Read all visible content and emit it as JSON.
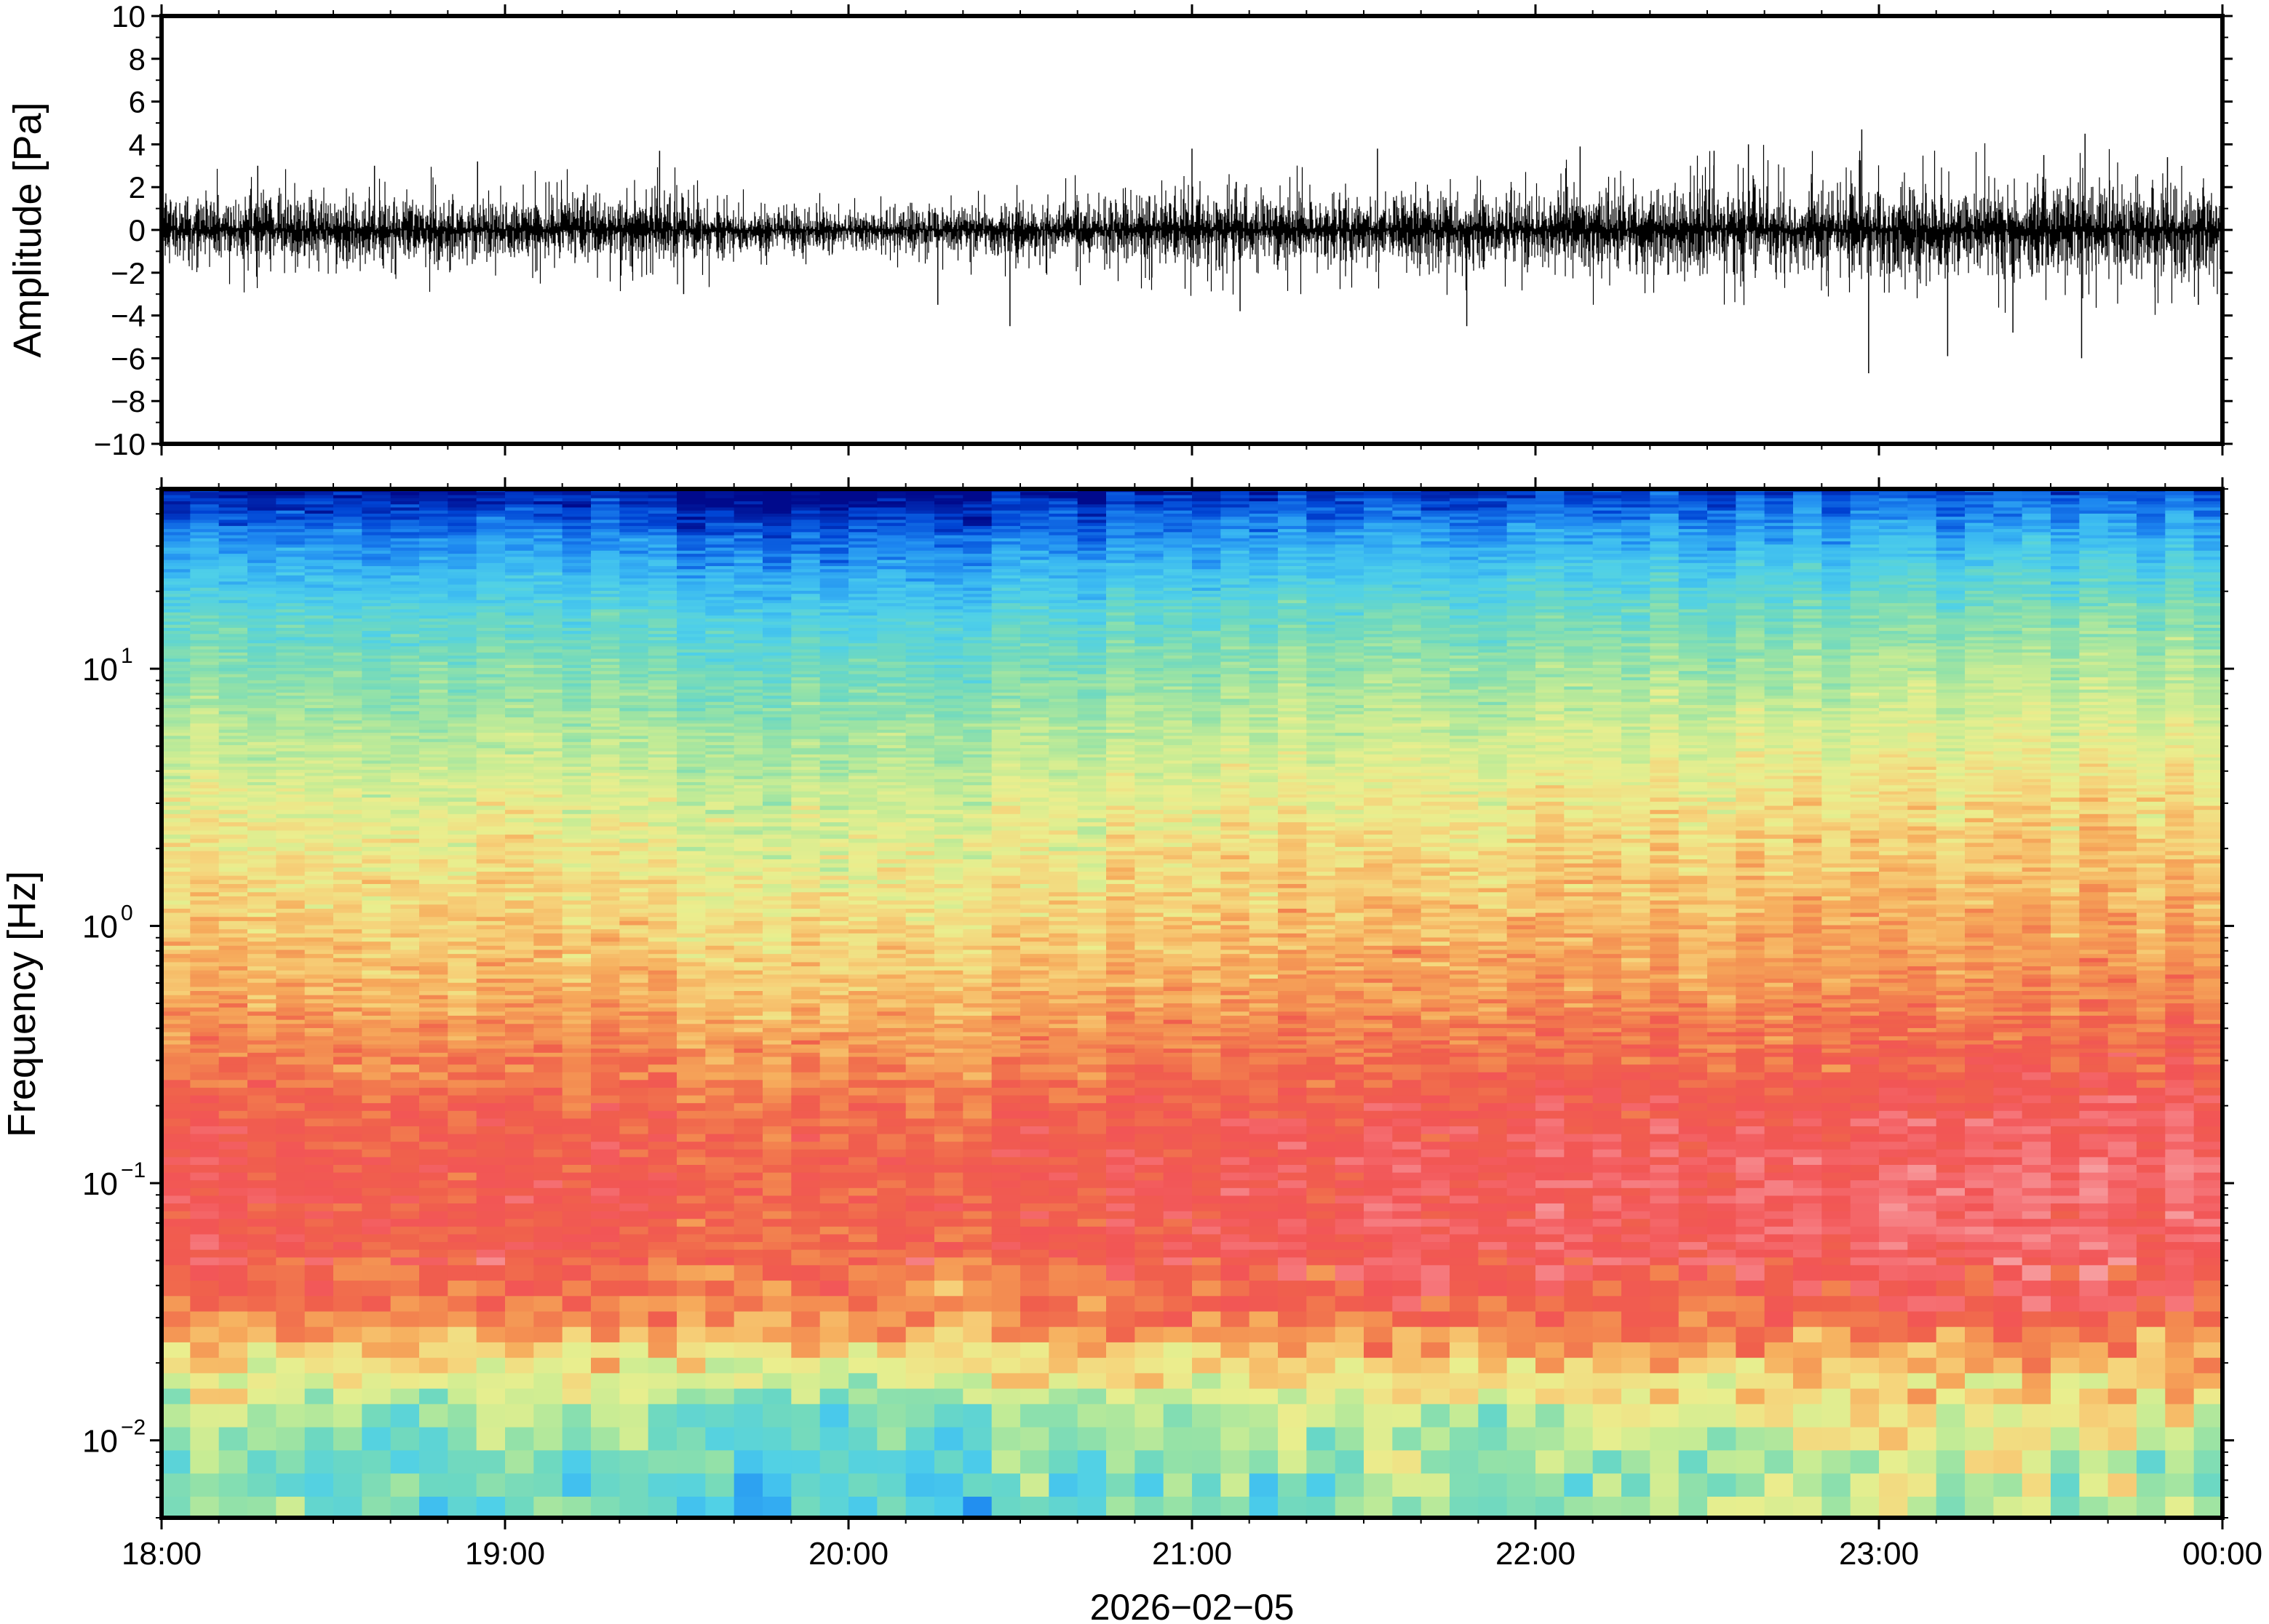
{
  "chart_data": [
    {
      "type": "line",
      "panel": "waveform",
      "ylabel": "Amplitude [Pa]",
      "xlabel": "2026−02−05",
      "x_tick_labels": [
        "18:00",
        "19:00",
        "20:00",
        "21:00",
        "22:00",
        "23:00",
        "00:00"
      ],
      "x_range_hours": [
        18,
        24
      ],
      "ylim": [
        -10,
        10
      ],
      "y_tick_labels": [
        "10",
        "8",
        "6",
        "4",
        "2",
        "0",
        "−2",
        "−4",
        "−6",
        "−8",
        "−10"
      ],
      "y_tick_values": [
        10,
        8,
        6,
        4,
        2,
        0,
        -2,
        -4,
        -6,
        -8,
        -10
      ],
      "baseline_envelope_pa": [
        {
          "x": 18.0,
          "amp": 1.3
        },
        {
          "x": 18.5,
          "amp": 1.4
        },
        {
          "x": 19.0,
          "amp": 1.3
        },
        {
          "x": 19.5,
          "amp": 1.4
        },
        {
          "x": 19.8,
          "amp": 0.9
        },
        {
          "x": 20.0,
          "amp": 0.7
        },
        {
          "x": 20.3,
          "amp": 1.0
        },
        {
          "x": 20.7,
          "amp": 1.2
        },
        {
          "x": 21.0,
          "amp": 1.5
        },
        {
          "x": 21.5,
          "amp": 1.4
        },
        {
          "x": 22.0,
          "amp": 1.5
        },
        {
          "x": 22.5,
          "amp": 1.8
        },
        {
          "x": 23.0,
          "amp": 1.9
        },
        {
          "x": 23.5,
          "amp": 1.9
        },
        {
          "x": 24.0,
          "amp": 1.8
        }
      ],
      "spikes": [
        {
          "x": 18.28,
          "y": 3.0
        },
        {
          "x": 18.62,
          "y": 3.0
        },
        {
          "x": 18.92,
          "y": 3.2
        },
        {
          "x": 19.45,
          "y": 3.7
        },
        {
          "x": 19.52,
          "y": -3.0
        },
        {
          "x": 20.26,
          "y": -3.5
        },
        {
          "x": 20.47,
          "y": -4.5
        },
        {
          "x": 21.0,
          "y": 3.8
        },
        {
          "x": 21.14,
          "y": -3.8
        },
        {
          "x": 21.54,
          "y": 3.8
        },
        {
          "x": 21.8,
          "y": -4.5
        },
        {
          "x": 22.13,
          "y": 3.9
        },
        {
          "x": 22.52,
          "y": 3.7
        },
        {
          "x": 22.62,
          "y": 4.0
        },
        {
          "x": 22.95,
          "y": 4.7
        },
        {
          "x": 22.97,
          "y": -6.7
        },
        {
          "x": 23.2,
          "y": -5.9
        },
        {
          "x": 23.48,
          "y": 3.5
        },
        {
          "x": 23.39,
          "y": -4.8
        },
        {
          "x": 23.59,
          "y": -6.0
        },
        {
          "x": 23.6,
          "y": 4.5
        },
        {
          "x": 23.84,
          "y": 3.4
        },
        {
          "x": 23.93,
          "y": -3.5
        }
      ]
    },
    {
      "type": "heatmap",
      "panel": "spectrogram",
      "ylabel": "Frequency [Hz]",
      "xlabel": "2026−02−05",
      "x_tick_labels": [
        "18:00",
        "19:00",
        "20:00",
        "21:00",
        "22:00",
        "23:00",
        "00:00"
      ],
      "x_range_hours": [
        18,
        24
      ],
      "y_scale": "log",
      "ylim_hz": [
        0.005,
        50
      ],
      "y_tick_labels": [
        {
          "base": "10",
          "exp": "1",
          "value": 10
        },
        {
          "base": "10",
          "exp": "0",
          "value": 1
        },
        {
          "base": "10",
          "exp": "−1",
          "value": 0.1
        },
        {
          "base": "10",
          "exp": "−2",
          "value": 0.01
        }
      ],
      "colormap": "rainbow (blue = low power, red/pink = high power)",
      "colormap_stops": [
        "#000a8c",
        "#0044d4",
        "#1d86f0",
        "#3ab8f2",
        "#4fd0e8",
        "#6cd8c2",
        "#96e2a6",
        "#c8ec94",
        "#eaee8e",
        "#f6d27a",
        "#f6ac5c",
        "#f38850",
        "#f0604c",
        "#f25556",
        "#f6787c",
        "#f79c9e"
      ],
      "level_profile": [
        {
          "log_f": 1.699,
          "level": 0.03
        },
        {
          "log_f": 1.55,
          "level": 0.13
        },
        {
          "log_f": 1.4,
          "level": 0.22
        },
        {
          "log_f": 1.2,
          "level": 0.32
        },
        {
          "log_f": 1.0,
          "level": 0.39
        },
        {
          "log_f": 0.75,
          "level": 0.46
        },
        {
          "log_f": 0.5,
          "level": 0.53
        },
        {
          "log_f": 0.2,
          "level": 0.59
        },
        {
          "log_f": 0.0,
          "level": 0.63
        },
        {
          "log_f": -0.25,
          "level": 0.68
        },
        {
          "log_f": -0.5,
          "level": 0.76
        },
        {
          "log_f": -0.75,
          "level": 0.83
        },
        {
          "log_f": -1.0,
          "level": 0.86
        },
        {
          "log_f": -1.25,
          "level": 0.85
        },
        {
          "log_f": -1.5,
          "level": 0.77
        },
        {
          "log_f": -1.7,
          "level": 0.6
        },
        {
          "log_f": -1.9,
          "level": 0.46
        },
        {
          "log_f": -2.1,
          "level": 0.38
        },
        {
          "log_f": -2.301,
          "level": 0.36
        }
      ],
      "time_profile": [
        {
          "x": 18.0,
          "level_shift": 0.0
        },
        {
          "x": 19.0,
          "level_shift": -0.01
        },
        {
          "x": 19.6,
          "level_shift": -0.04
        },
        {
          "x": 20.0,
          "level_shift": -0.06
        },
        {
          "x": 20.5,
          "level_shift": -0.04
        },
        {
          "x": 21.0,
          "level_shift": 0.0
        },
        {
          "x": 22.0,
          "level_shift": 0.02
        },
        {
          "x": 23.0,
          "level_shift": 0.04
        },
        {
          "x": 24.0,
          "level_shift": 0.05
        }
      ]
    }
  ]
}
